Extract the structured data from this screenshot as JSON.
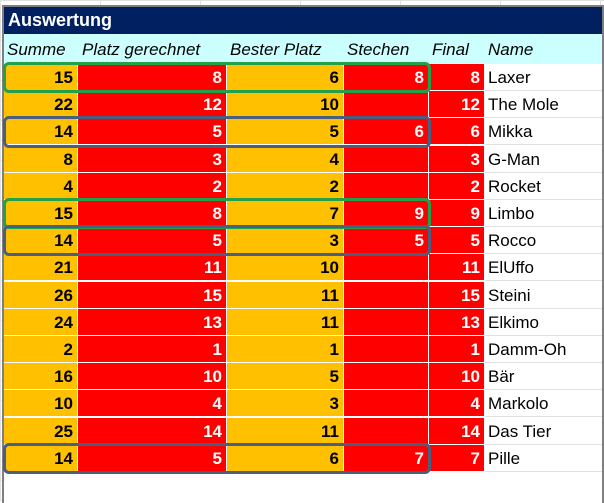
{
  "title": "Auswertung",
  "headers": [
    "Summe",
    "Platz gerechnet",
    "Bester Platz",
    "Stechen",
    "Final",
    "Name"
  ],
  "colors": {
    "title_bg": "#002060",
    "header_bg": "#ccffff",
    "orange": "#ffc000",
    "red": "#ff0000",
    "green_box": "#22a04a",
    "blue_box": "#4a5f80"
  },
  "rows": [
    {
      "summe": "15",
      "platz": "8",
      "bester": "6",
      "stechen": "8",
      "final": "8",
      "name": "Laxer"
    },
    {
      "summe": "22",
      "platz": "12",
      "bester": "10",
      "stechen": "",
      "final": "12",
      "name": "The Mole"
    },
    {
      "summe": "14",
      "platz": "5",
      "bester": "5",
      "stechen": "6",
      "final": "6",
      "name": "Mikka"
    },
    {
      "summe": "8",
      "platz": "3",
      "bester": "4",
      "stechen": "",
      "final": "3",
      "name": "G-Man"
    },
    {
      "summe": "4",
      "platz": "2",
      "bester": "2",
      "stechen": "",
      "final": "2",
      "name": "Rocket"
    },
    {
      "summe": "15",
      "platz": "8",
      "bester": "7",
      "stechen": "9",
      "final": "9",
      "name": "Limbo"
    },
    {
      "summe": "14",
      "platz": "5",
      "bester": "3",
      "stechen": "5",
      "final": "5",
      "name": "Rocco"
    },
    {
      "summe": "21",
      "platz": "11",
      "bester": "10",
      "stechen": "",
      "final": "11",
      "name": "ElUffo"
    },
    {
      "summe": "26",
      "platz": "15",
      "bester": "11",
      "stechen": "",
      "final": "15",
      "name": "Steini"
    },
    {
      "summe": "24",
      "platz": "13",
      "bester": "11",
      "stechen": "",
      "final": "13",
      "name": "Elkimo"
    },
    {
      "summe": "2",
      "platz": "1",
      "bester": "1",
      "stechen": "",
      "final": "1",
      "name": "Damm-Oh"
    },
    {
      "summe": "16",
      "platz": "10",
      "bester": "5",
      "stechen": "",
      "final": "10",
      "name": "Bär"
    },
    {
      "summe": "10",
      "platz": "4",
      "bester": "3",
      "stechen": "",
      "final": "4",
      "name": "Markolo"
    },
    {
      "summe": "25",
      "platz": "14",
      "bester": "11",
      "stechen": "",
      "final": "14",
      "name": "Das Tier"
    },
    {
      "summe": "14",
      "platz": "5",
      "bester": "6",
      "stechen": "7",
      "final": "7",
      "name": "Pille"
    }
  ],
  "highlights": [
    {
      "row": 0,
      "color": "green"
    },
    {
      "row": 5,
      "color": "green"
    },
    {
      "row": 2,
      "color": "blue"
    },
    {
      "row": 6,
      "color": "blue"
    },
    {
      "row": 14,
      "color": "blue"
    }
  ]
}
